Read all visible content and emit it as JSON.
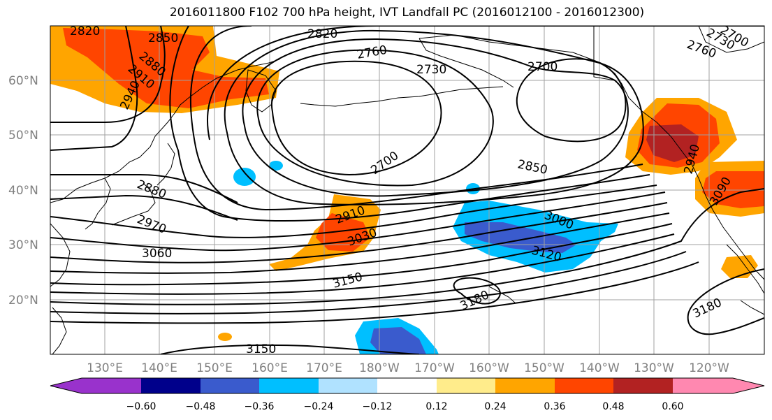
{
  "title": "2016011800 F102 700 hPa height, IVT Landfall PC (2016012100 - 2016012300)",
  "lat_labels": [
    "60°N",
    "50°N",
    "40°N",
    "30°N",
    "20°N"
  ],
  "lon_labels": [
    "130°E",
    "140°E",
    "150°E",
    "160°E",
    "170°E",
    "180°W",
    "170°W",
    "160°W",
    "150°W",
    "140°W",
    "130°W",
    "120°W"
  ],
  "contour_labels": [
    "2820",
    "2850",
    "2880",
    "2910",
    "2940",
    "2820",
    "2760",
    "2730",
    "2700",
    "2760",
    "2730",
    "2700",
    "2700",
    "2850",
    "2880",
    "2970",
    "3060",
    "2910",
    "3030",
    "3000",
    "3120",
    "3150",
    "3180",
    "3180",
    "3150",
    "2940",
    "3090"
  ],
  "colorbar": {
    "ticks": [
      "−0.60",
      "−0.48",
      "−0.36",
      "−0.24",
      "−0.12",
      "0.12",
      "0.24",
      "0.36",
      "0.48",
      "0.60"
    ],
    "colors": [
      "#9932CC",
      "#00008B",
      "#3A5BCD",
      "#00BFFF",
      "#B0E2FF",
      "#FFFFFF",
      "#FFEC8B",
      "#FFA500",
      "#FF4500",
      "#B22222",
      "#FF88B0"
    ]
  },
  "map": {
    "lat_range": [
      10,
      70
    ],
    "lon_range": [
      120,
      250
    ],
    "variable": "700 hPa height",
    "shading": "IVT Landfall PC",
    "colors": {
      "strong_negative": "#3A5BCD",
      "negative": "#00BFFF",
      "weak_positive": "#FFA500",
      "positive": "#FF4500",
      "strong_positive": "#B22222",
      "contour": "#000000"
    }
  }
}
